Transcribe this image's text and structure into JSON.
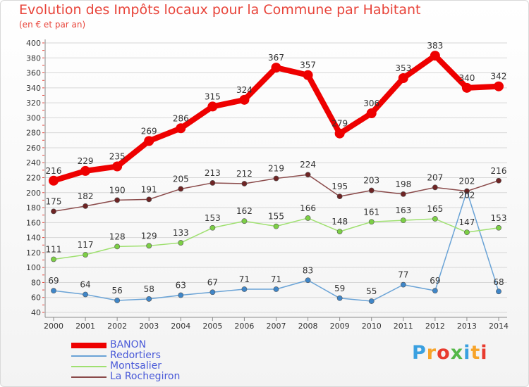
{
  "header": {
    "title": "Evolution des Impôts locaux pour la Commune par Habitant",
    "subtitle": "(en € et par an)"
  },
  "brand": {
    "logo_text": "Proxiti",
    "logo_colors": [
      "#3aa0e0",
      "#f7a42a",
      "#e83b2e",
      "#55b848",
      "#3aa0e0",
      "#f7a42a",
      "#e83b2e"
    ]
  },
  "colors": {
    "grid": "#d7d7d7",
    "axis": "#8a8a8a",
    "text": "#333333",
    "tick_marks": "#e8443a"
  },
  "chart_data": {
    "type": "line",
    "title": "Evolution des Impôts locaux pour la Commune par Habitant",
    "subtitle": "(en € et par an)",
    "xlabel": "",
    "ylabel": "",
    "x": [
      "2000",
      "2001",
      "2002",
      "2003",
      "2004",
      "2005",
      "2006",
      "2007",
      "2008",
      "2009",
      "2010",
      "2011",
      "2012",
      "2013",
      "2014"
    ],
    "ylim": [
      40,
      400
    ],
    "yticks": [
      40,
      60,
      80,
      100,
      120,
      140,
      160,
      180,
      200,
      220,
      240,
      260,
      280,
      300,
      320,
      340,
      360,
      380,
      400
    ],
    "grid": "horizontal",
    "legend_position": "bottom-left",
    "series": [
      {
        "name": "BANON",
        "color": "#ee0000",
        "marker_color": "#ee0000",
        "values": [
          216,
          229,
          235,
          269,
          286,
          315,
          324,
          367,
          357,
          279,
          306,
          353,
          383,
          340,
          342
        ]
      },
      {
        "name": "Redortiers",
        "color": "#6aa3d6",
        "marker_color": "#3f86c8",
        "values": [
          69,
          64,
          56,
          58,
          63,
          67,
          71,
          71,
          83,
          59,
          55,
          77,
          69,
          202,
          68
        ]
      },
      {
        "name": "Montsalier",
        "color": "#9fe070",
        "marker_color": "#7ccf45",
        "values": [
          111,
          117,
          128,
          129,
          133,
          153,
          162,
          155,
          166,
          148,
          161,
          163,
          165,
          147,
          153
        ]
      },
      {
        "name": "La Rochegiron",
        "color": "#8a4a4a",
        "marker_color": "#6e2424",
        "values": [
          175,
          182,
          190,
          191,
          205,
          213,
          212,
          219,
          224,
          195,
          203,
          198,
          207,
          202,
          216
        ]
      }
    ]
  }
}
